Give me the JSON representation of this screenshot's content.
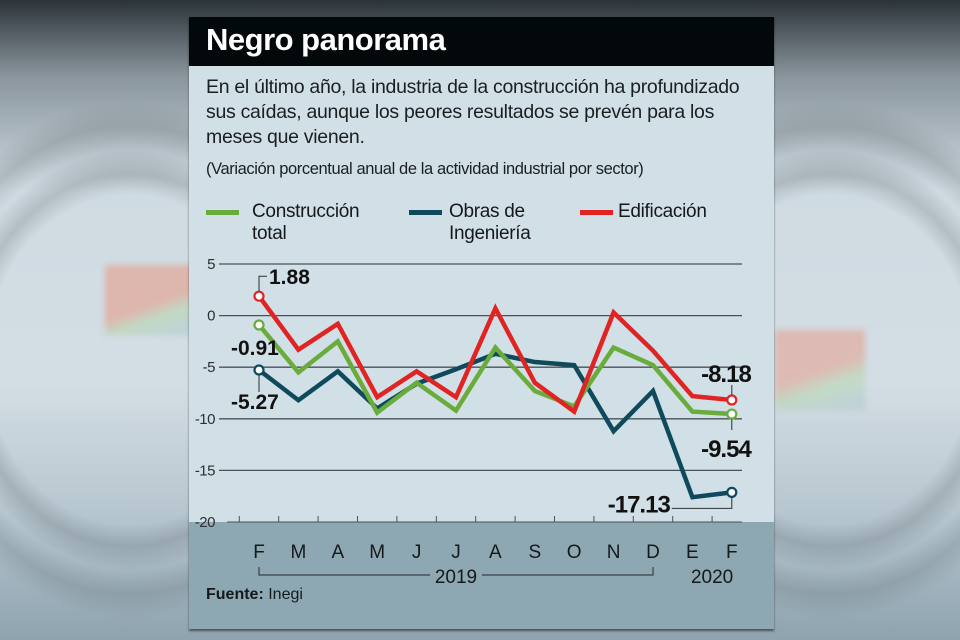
{
  "header": {
    "title": "Negro panorama",
    "description": "En el último año, la industria de la construcción ha profundizado sus caídas, aunque los peores resultados se prevén para los meses que vienen.",
    "subtitle": "(Variación porcentual anual de la actividad industrial por sector)"
  },
  "legend": [
    {
      "label_line1": "Construcción",
      "label_line2": "total",
      "color": "#6aac3c"
    },
    {
      "label_line1": "Obras de",
      "label_line2": "Ingeniería",
      "color": "#0e4a5c"
    },
    {
      "label_line1": "Edificación",
      "label_line2": "",
      "color": "#e02424"
    }
  ],
  "footer": {
    "source_label": "Fuente:",
    "source_value": "Inegi"
  },
  "chart_data": {
    "type": "line",
    "title": "Negro panorama",
    "subtitle": "(Variación porcentual anual de la actividad industrial por sector)",
    "xlabel": "",
    "ylabel": "",
    "ylim": [
      -20,
      5
    ],
    "yticks": [
      5,
      0,
      -5,
      -10,
      -15,
      -20
    ],
    "ytick_labels": [
      "5",
      "0",
      "-5",
      "-10",
      "-15",
      "-20"
    ],
    "grid": true,
    "legend_position": "top",
    "categories": [
      "F",
      "M",
      "A",
      "M",
      "J",
      "J",
      "A",
      "S",
      "O",
      "N",
      "D",
      "E",
      "F"
    ],
    "year_groups": [
      {
        "label": "2019",
        "from": 0,
        "to": 10
      },
      {
        "label": "2020",
        "from": 11,
        "to": 12
      }
    ],
    "series": [
      {
        "name": "Construcción total",
        "color": "#6aac3c",
        "values": [
          -0.91,
          -5.5,
          -2.5,
          -9.4,
          -6.5,
          -9.2,
          -3.1,
          -7.3,
          -8.8,
          -3.1,
          -4.8,
          -9.3,
          -9.54
        ]
      },
      {
        "name": "Obras de Ingeniería",
        "color": "#0e4a5c",
        "values": [
          -5.27,
          -8.2,
          -5.4,
          -9.0,
          -6.6,
          -5.2,
          -3.7,
          -4.5,
          -4.8,
          -11.2,
          -7.3,
          -17.6,
          -17.13
        ]
      },
      {
        "name": "Edificación",
        "color": "#e02424",
        "values": [
          1.88,
          -3.3,
          -0.8,
          -7.9,
          -5.4,
          -7.9,
          0.7,
          -6.5,
          -9.3,
          0.3,
          -3.4,
          -7.8,
          -8.18
        ]
      }
    ],
    "annotations": [
      {
        "series": 2,
        "index": 0,
        "text": "1.88"
      },
      {
        "series": 0,
        "index": 0,
        "text": "-0.91"
      },
      {
        "series": 1,
        "index": 0,
        "text": "-5.27"
      },
      {
        "series": 2,
        "index": 12,
        "text": "-8.18"
      },
      {
        "series": 0,
        "index": 12,
        "text": "-9.54"
      },
      {
        "series": 1,
        "index": 12,
        "text": "-17.13"
      }
    ]
  }
}
